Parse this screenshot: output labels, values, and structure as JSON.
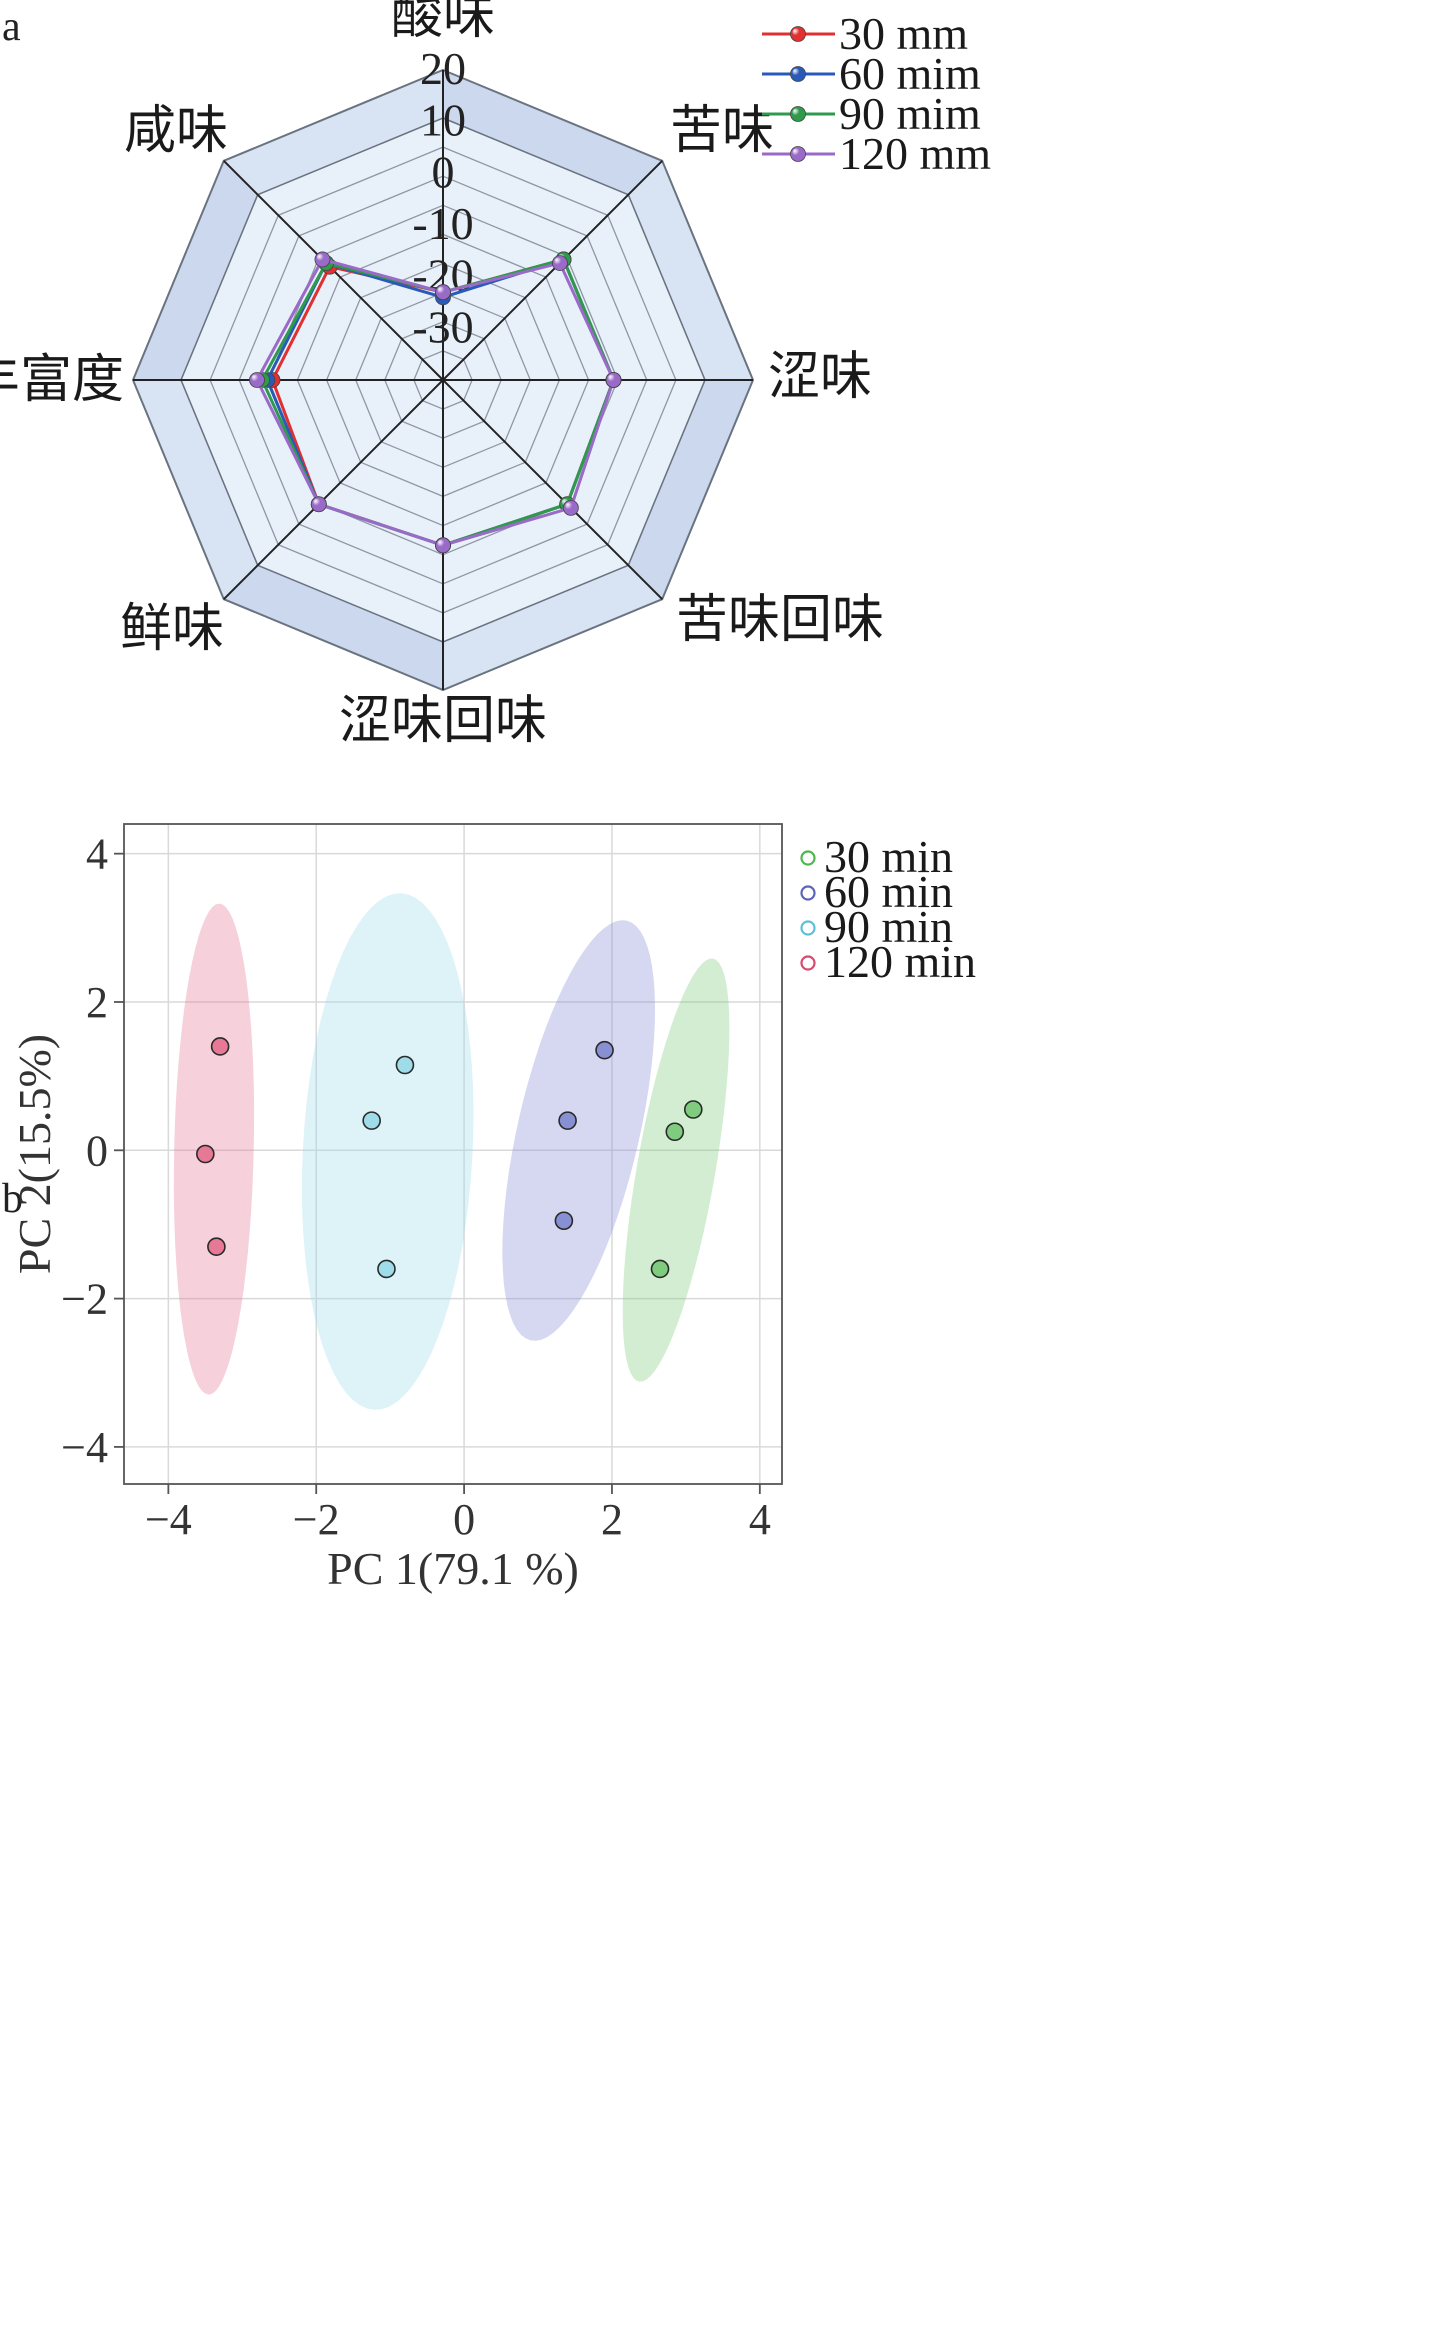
{
  "panels": {
    "a": "a",
    "b": "b"
  },
  "chart_data": [
    {
      "type": "radar",
      "panel": "a",
      "axes": [
        "酸味",
        "苦味",
        "涩味",
        "苦味回味",
        "涩味回味",
        "鲜味",
        "丰富度",
        "咸味"
      ],
      "radial_ticks": [
        20,
        10,
        0,
        -10,
        -20,
        -30
      ],
      "rlim": [
        -40,
        20
      ],
      "legend": "top-right",
      "series": [
        {
          "name": "30 mm",
          "color": "#e03030",
          "values": [
            -23,
            -7,
            -7,
            -6,
            -8,
            -6,
            -7,
            -9
          ]
        },
        {
          "name": "60 mim",
          "color": "#2a5ab8",
          "values": [
            -24,
            -7,
            -7,
            -6,
            -8,
            -6,
            -6,
            -8
          ]
        },
        {
          "name": "90 mim",
          "color": "#2f9a4c",
          "values": [
            -23,
            -7,
            -7,
            -6,
            -8,
            -6,
            -5,
            -8
          ]
        },
        {
          "name": "120 mm",
          "color": "#9a6ac8",
          "values": [
            -23,
            -8,
            -7,
            -5,
            -8,
            -6,
            -4,
            -7
          ]
        }
      ]
    },
    {
      "type": "scatter",
      "panel": "b",
      "xlabel": "PC 1(79.1 %)",
      "ylabel": "PC 2(15.5%)",
      "xlim": [
        -4.6,
        4.3
      ],
      "ylim": [
        -4.5,
        4.4
      ],
      "xticks": [
        -4,
        -2,
        0,
        2,
        4
      ],
      "yticks": [
        4,
        2,
        0,
        -2,
        -4
      ],
      "xtick_labels": [
        "−4",
        "−2",
        "0",
        "2",
        "4"
      ],
      "ytick_labels": [
        "4",
        "2",
        "0",
        "−2",
        "−4"
      ],
      "grid": true,
      "legend": "right",
      "series": [
        {
          "name": "30 min",
          "color": "#4cb84c",
          "fill": "#7fcc7f",
          "points": [
            [
              3.1,
              0.55
            ],
            [
              2.85,
              0.25
            ],
            [
              2.65,
              -1.6
            ]
          ]
        },
        {
          "name": "60 min",
          "color": "#5a64b8",
          "fill": "#8890d4",
          "points": [
            [
              1.9,
              1.35
            ],
            [
              1.4,
              0.4
            ],
            [
              1.35,
              -0.95
            ]
          ]
        },
        {
          "name": "90 min",
          "color": "#5cc0d8",
          "fill": "#9edcea",
          "points": [
            [
              -0.8,
              1.15
            ],
            [
              -1.25,
              0.4
            ],
            [
              -1.05,
              -1.6
            ]
          ]
        },
        {
          "name": "120 min",
          "color": "#d84a70",
          "fill": "#e57996",
          "points": [
            [
              -3.3,
              1.4
            ],
            [
              -3.5,
              -0.05
            ],
            [
              -3.35,
              -1.3
            ]
          ]
        }
      ]
    }
  ]
}
